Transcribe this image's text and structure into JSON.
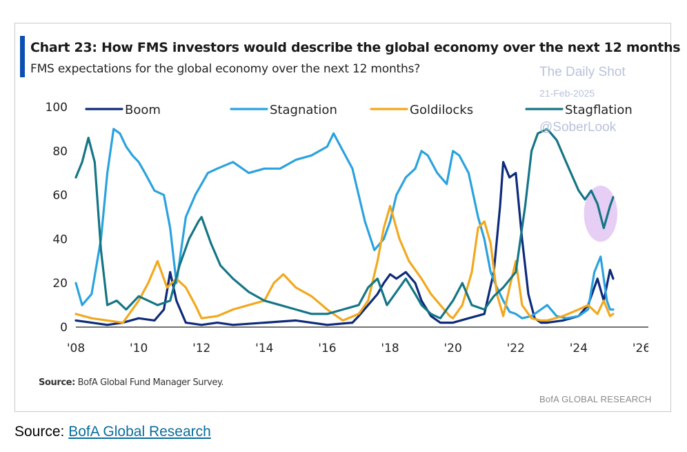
{
  "source_line": {
    "label": "Source:",
    "link_text": "BofA Global Research"
  },
  "figure": {
    "title": "Chart 23: How FMS investors would describe the global economy over the next 12 months",
    "subtitle": "FMS expectations for the global economy over the next 12 months?",
    "watermark": {
      "name": "The Daily Shot",
      "date": "21-Feb-2025",
      "handle": "@SoberLook"
    },
    "footnote_label": "Source:",
    "footnote_text": "BofA Global Fund Manager Survey.",
    "brand": "BofA GLOBAL RESEARCH"
  },
  "chart_data": {
    "type": "line",
    "title": "Chart 23: How FMS investors would describe the global economy over the next 12 months",
    "subtitle": "FMS expectations for the global economy over the next 12 months?",
    "xlabel": "",
    "ylabel": "",
    "xlim": [
      2008,
      2026
    ],
    "ylim": [
      0,
      100
    ],
    "x_ticks": [
      2008,
      2010,
      2012,
      2014,
      2016,
      2018,
      2020,
      2022,
      2024,
      2026
    ],
    "x_tick_labels": [
      "'08",
      "'10",
      "'12",
      "'14",
      "'16",
      "'18",
      "'20",
      "'22",
      "'24",
      "'26"
    ],
    "y_ticks": [
      0,
      20,
      40,
      60,
      80,
      100
    ],
    "y_tick_labels": [
      "0",
      "20",
      "40",
      "60",
      "80",
      "100"
    ],
    "grid": false,
    "legend_position": "top",
    "highlight": {
      "x_from": 2024.3,
      "x_to": 2025.1,
      "y_from": 40,
      "y_to": 63
    },
    "series": [
      {
        "name": "Boom",
        "color": "#0d2a7a",
        "x": [
          2008.0,
          2008.5,
          2009.0,
          2009.5,
          2010.0,
          2010.5,
          2010.8,
          2011.0,
          2011.2,
          2011.5,
          2012.0,
          2012.5,
          2013.0,
          2014.0,
          2015.0,
          2016.0,
          2016.8,
          2017.0,
          2017.3,
          2017.6,
          2017.8,
          2018.0,
          2018.2,
          2018.5,
          2018.8,
          2019.0,
          2019.3,
          2019.6,
          2020.0,
          2020.5,
          2021.0,
          2021.3,
          2021.5,
          2021.6,
          2021.8,
          2022.0,
          2022.2,
          2022.4,
          2022.6,
          2022.8,
          2023.0,
          2023.5,
          2024.0,
          2024.3,
          2024.6,
          2024.8,
          2025.0,
          2025.1
        ],
        "y": [
          3,
          2,
          1,
          2,
          4,
          3,
          8,
          25,
          12,
          2,
          1,
          2,
          1,
          2,
          3,
          1,
          2,
          5,
          10,
          15,
          20,
          24,
          22,
          25,
          20,
          12,
          5,
          2,
          2,
          4,
          6,
          25,
          55,
          75,
          68,
          70,
          40,
          15,
          4,
          2,
          2,
          3,
          5,
          10,
          22,
          12,
          26,
          22
        ]
      },
      {
        "name": "Stagnation",
        "color": "#2aa2de",
        "x": [
          2008.0,
          2008.2,
          2008.5,
          2008.8,
          2009.0,
          2009.2,
          2009.4,
          2009.6,
          2009.8,
          2010.0,
          2010.2,
          2010.5,
          2010.8,
          2011.0,
          2011.2,
          2011.5,
          2011.8,
          2012.0,
          2012.2,
          2012.5,
          2013.0,
          2013.5,
          2014.0,
          2014.5,
          2015.0,
          2015.5,
          2016.0,
          2016.2,
          2016.5,
          2016.8,
          2017.0,
          2017.2,
          2017.5,
          2017.8,
          2018.0,
          2018.2,
          2018.5,
          2018.8,
          2019.0,
          2019.2,
          2019.5,
          2019.8,
          2020.0,
          2020.2,
          2020.5,
          2020.8,
          2021.0,
          2021.2,
          2021.4,
          2021.6,
          2021.8,
          2022.0,
          2022.2,
          2022.5,
          2022.8,
          2023.0,
          2023.3,
          2023.6,
          2024.0,
          2024.3,
          2024.5,
          2024.7,
          2024.9,
          2025.0,
          2025.1
        ],
        "y": [
          20,
          10,
          15,
          40,
          70,
          90,
          88,
          82,
          78,
          75,
          70,
          62,
          60,
          45,
          20,
          50,
          60,
          65,
          70,
          72,
          75,
          70,
          72,
          72,
          76,
          78,
          82,
          88,
          80,
          72,
          60,
          48,
          35,
          40,
          48,
          60,
          68,
          72,
          80,
          78,
          70,
          65,
          80,
          78,
          70,
          50,
          40,
          25,
          18,
          12,
          7,
          6,
          4,
          5,
          8,
          10,
          5,
          4,
          5,
          8,
          25,
          32,
          12,
          8,
          8
        ]
      },
      {
        "name": "Goldilocks",
        "color": "#f2a81d",
        "x": [
          2008.0,
          2008.5,
          2009.0,
          2009.5,
          2010.0,
          2010.3,
          2010.6,
          2010.9,
          2011.2,
          2011.5,
          2011.8,
          2012.0,
          2012.5,
          2013.0,
          2013.5,
          2014.0,
          2014.3,
          2014.6,
          2015.0,
          2015.5,
          2016.0,
          2016.5,
          2017.0,
          2017.3,
          2017.6,
          2017.8,
          2018.0,
          2018.3,
          2018.6,
          2019.0,
          2019.3,
          2019.6,
          2019.9,
          2020.0,
          2020.3,
          2020.6,
          2020.8,
          2021.0,
          2021.2,
          2021.4,
          2021.6,
          2021.8,
          2022.0,
          2022.2,
          2022.5,
          2022.8,
          2023.0,
          2023.5,
          2024.0,
          2024.3,
          2024.6,
          2024.8,
          2025.0,
          2025.1
        ],
        "y": [
          6,
          4,
          3,
          2,
          12,
          20,
          30,
          18,
          22,
          18,
          10,
          4,
          5,
          8,
          10,
          12,
          20,
          24,
          18,
          14,
          8,
          3,
          6,
          12,
          30,
          45,
          55,
          40,
          30,
          22,
          15,
          10,
          5,
          4,
          10,
          25,
          45,
          48,
          38,
          15,
          5,
          18,
          30,
          10,
          4,
          3,
          3,
          5,
          8,
          10,
          6,
          12,
          5,
          6
        ]
      },
      {
        "name": "Stagflation",
        "color": "#147585",
        "x": [
          2008.0,
          2008.2,
          2008.4,
          2008.6,
          2008.8,
          2009.0,
          2009.3,
          2009.6,
          2010.0,
          2010.3,
          2010.6,
          2011.0,
          2011.3,
          2011.6,
          2011.9,
          2012.0,
          2012.3,
          2012.6,
          2013.0,
          2013.5,
          2014.0,
          2014.5,
          2015.0,
          2015.5,
          2016.0,
          2016.5,
          2017.0,
          2017.3,
          2017.6,
          2017.9,
          2018.2,
          2018.5,
          2018.8,
          2019.0,
          2019.3,
          2019.6,
          2020.0,
          2020.3,
          2020.6,
          2021.0,
          2021.3,
          2021.6,
          2022.0,
          2022.3,
          2022.5,
          2022.7,
          2023.0,
          2023.3,
          2023.6,
          2024.0,
          2024.2,
          2024.4,
          2024.6,
          2024.8,
          2024.9,
          2025.0,
          2025.1
        ],
        "y": [
          68,
          75,
          86,
          75,
          35,
          10,
          12,
          8,
          14,
          12,
          10,
          12,
          28,
          40,
          48,
          50,
          38,
          28,
          22,
          16,
          12,
          10,
          8,
          6,
          6,
          8,
          10,
          18,
          22,
          10,
          16,
          22,
          15,
          10,
          6,
          4,
          12,
          20,
          10,
          8,
          14,
          18,
          25,
          55,
          80,
          88,
          90,
          85,
          75,
          62,
          58,
          62,
          56,
          45,
          50,
          55,
          59
        ]
      }
    ]
  }
}
